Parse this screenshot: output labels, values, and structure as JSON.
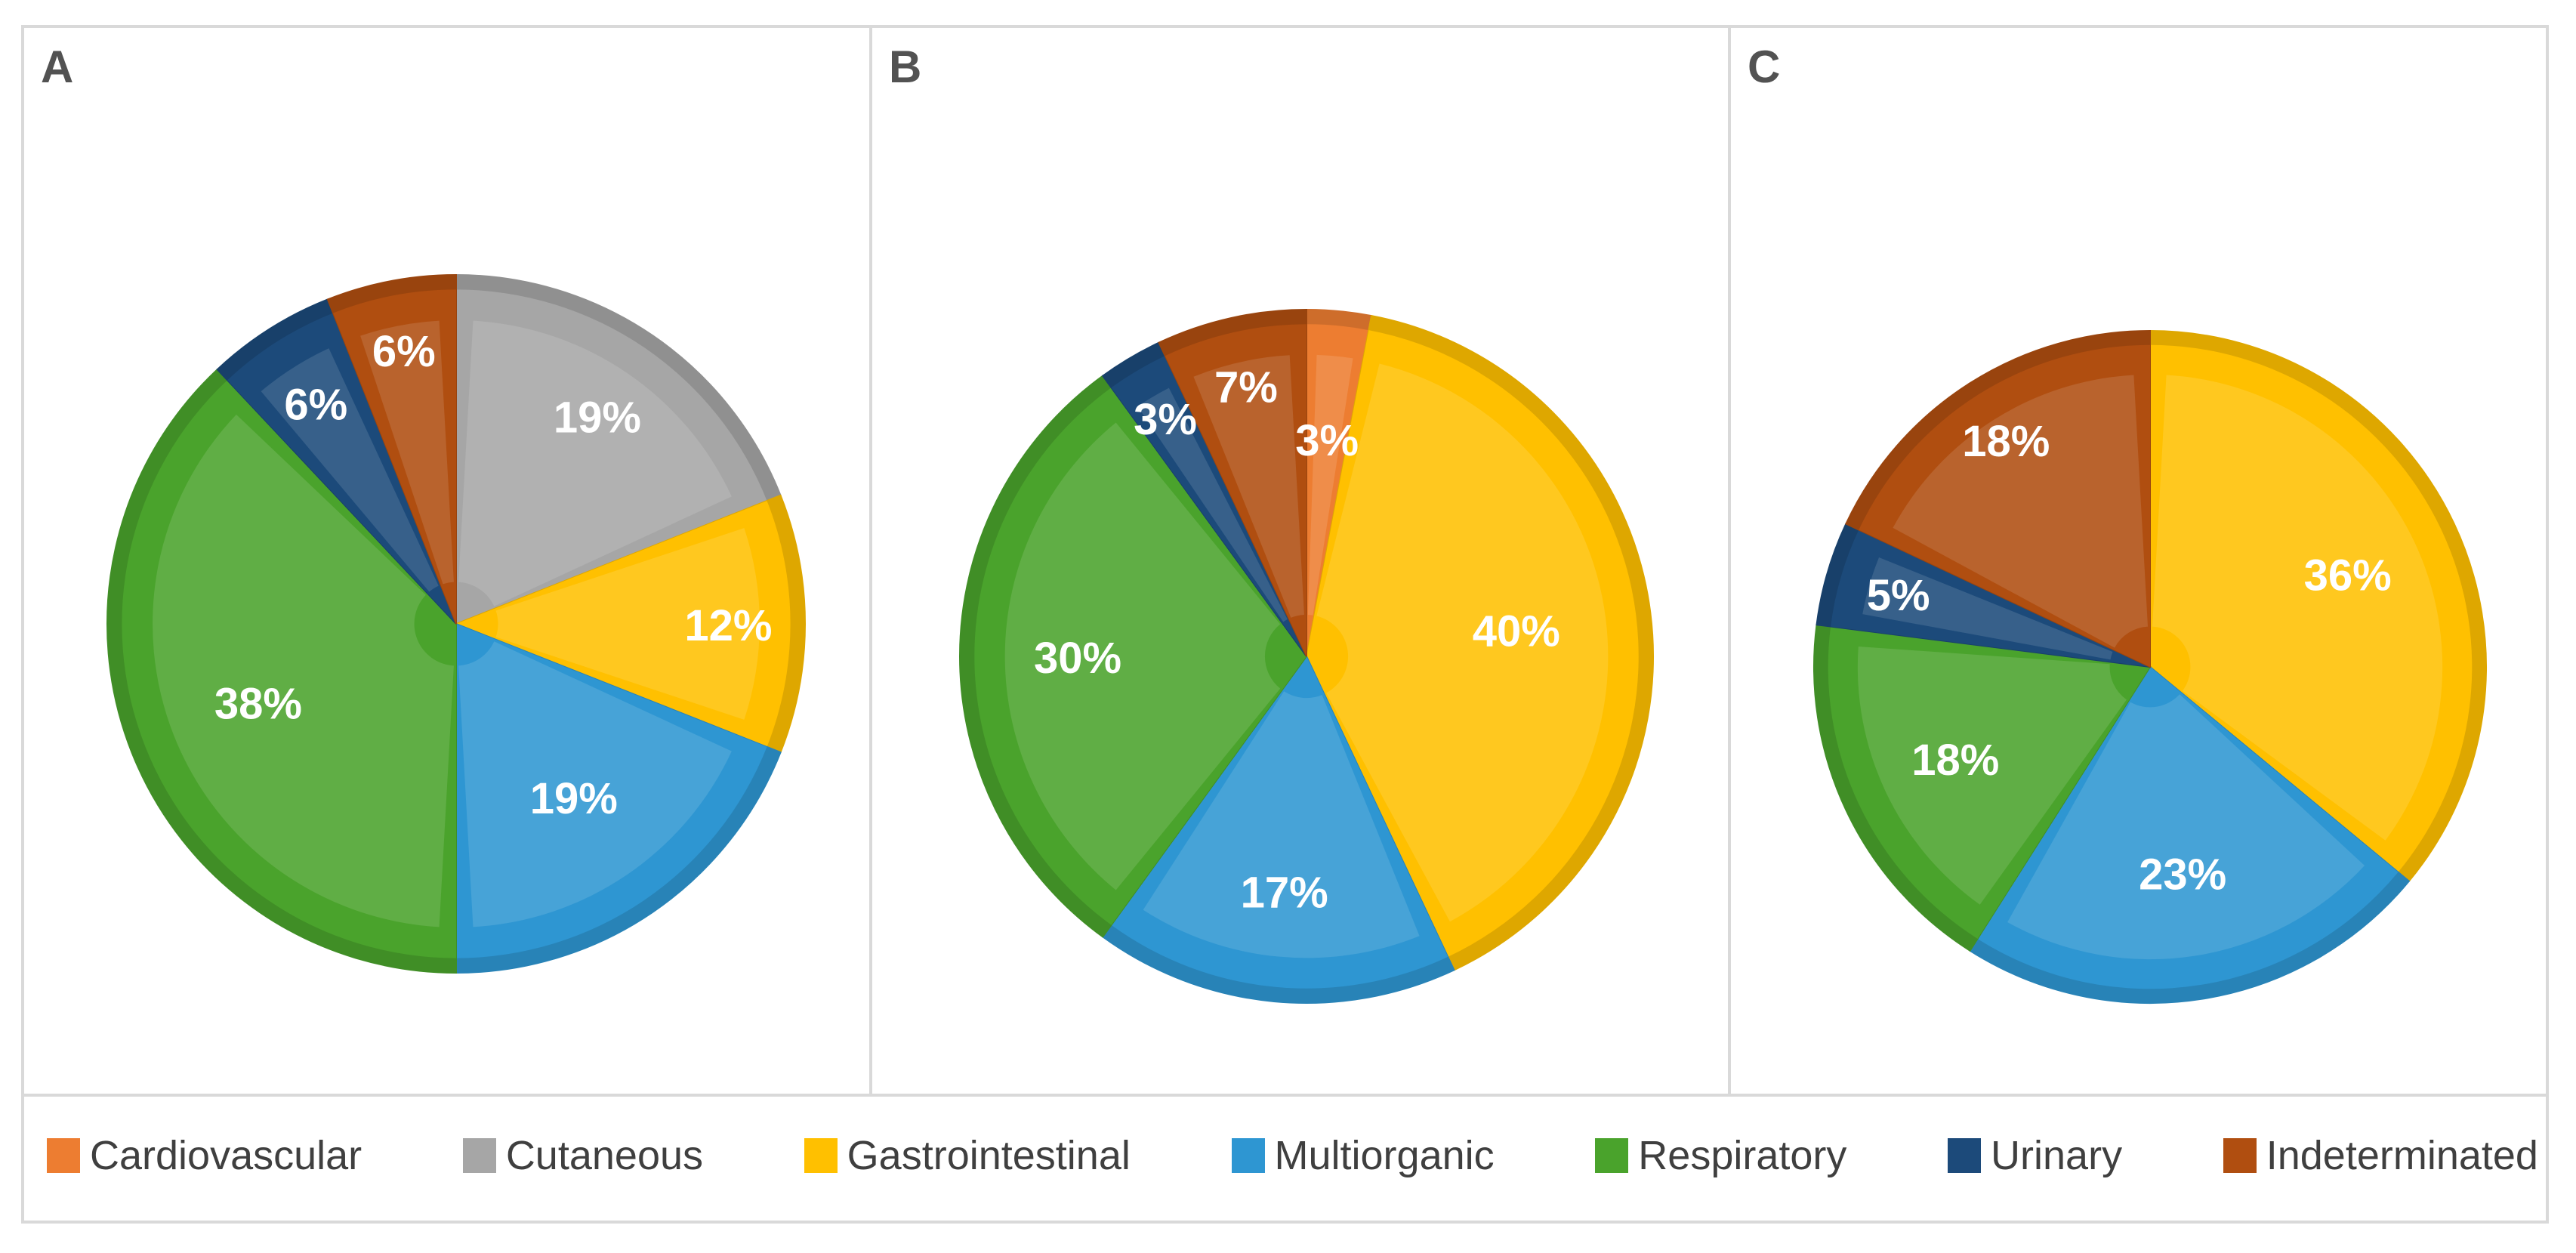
{
  "panels": [
    {
      "label": "A"
    },
    {
      "label": "B"
    },
    {
      "label": "C"
    }
  ],
  "legend": {
    "items": [
      {
        "label": "Cardiovascular",
        "color": "#ED7D31"
      },
      {
        "label": "Cutaneous",
        "color": "#A6A6A6"
      },
      {
        "label": "Gastrointestinal",
        "color": "#FFC000"
      },
      {
        "label": "Multiorganic",
        "color": "#2E96D2"
      },
      {
        "label": "Respiratory",
        "color": "#4AA32C"
      },
      {
        "label": "Urinary",
        "color": "#1C4A7A"
      },
      {
        "label": "Indeterminated",
        "color": "#B04E10"
      }
    ]
  },
  "chart_data": [
    {
      "type": "pie",
      "panel": "A",
      "unit": "percent",
      "start_angle_deg": 0,
      "direction": "clockwise",
      "legend_position": "bottom-shared",
      "slices": [
        {
          "category": "Cutaneous",
          "value": 19,
          "label": "19%",
          "label_r": 0.72
        },
        {
          "category": "Gastrointestinal",
          "value": 12,
          "label": "12%",
          "label_r": 0.78
        },
        {
          "category": "Multiorganic",
          "value": 19,
          "label": "19%",
          "label_r": 0.6
        },
        {
          "category": "Respiratory",
          "value": 38,
          "label": "38%",
          "label_r": 0.61
        },
        {
          "category": "Urinary",
          "value": 6,
          "label": "6%",
          "label_r": 0.75
        },
        {
          "category": "Indeterminated",
          "value": 6,
          "label": "6%",
          "label_r": 0.8
        }
      ]
    },
    {
      "type": "pie",
      "panel": "B",
      "unit": "percent",
      "start_angle_deg": 0,
      "direction": "clockwise",
      "legend_position": "bottom-shared",
      "slices": [
        {
          "category": "Cardiovascular",
          "value": 3,
          "label": "3%",
          "label_r": 0.63
        },
        {
          "category": "Gastrointestinal",
          "value": 40,
          "label": "40%",
          "label_r": 0.61
        },
        {
          "category": "Multiorganic",
          "value": 17,
          "label": "17%",
          "label_r": 0.68
        },
        {
          "category": "Respiratory",
          "value": 30,
          "label": "30%",
          "label_r": 0.66
        },
        {
          "category": "Urinary",
          "value": 3,
          "label": "3%",
          "label_r": 0.8
        },
        {
          "category": "Indeterminated",
          "value": 7,
          "label": "7%",
          "label_r": 0.8
        }
      ]
    },
    {
      "type": "pie",
      "panel": "C",
      "unit": "percent",
      "start_angle_deg": 0,
      "direction": "clockwise",
      "legend_position": "bottom-shared",
      "slices": [
        {
          "category": "Gastrointestinal",
          "value": 36,
          "label": "36%",
          "label_r": 0.65
        },
        {
          "category": "Multiorganic",
          "value": 23,
          "label": "23%",
          "label_r": 0.62
        },
        {
          "category": "Respiratory",
          "value": 18,
          "label": "18%",
          "label_r": 0.64
        },
        {
          "category": "Urinary",
          "value": 5,
          "label": "5%",
          "label_r": 0.78
        },
        {
          "category": "Indeterminated",
          "value": 18,
          "label": "18%",
          "label_r": 0.8
        }
      ]
    }
  ]
}
